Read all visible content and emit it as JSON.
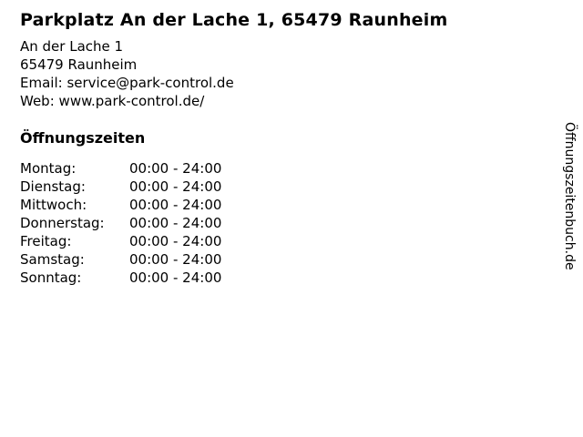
{
  "page": {
    "title": "Parkplatz An der Lache 1, 65479 Raunheim"
  },
  "address": {
    "street": "An der Lache 1",
    "city": "65479 Raunheim",
    "email_label": "Email:",
    "email_value": "service@park-control.de",
    "web_label": "Web:",
    "web_value": "www.park-control.de/"
  },
  "hours": {
    "heading": "Öffnungszeiten",
    "rows": [
      {
        "day": "Montag:",
        "time": "00:00 - 24:00"
      },
      {
        "day": "Dienstag:",
        "time": "00:00 - 24:00"
      },
      {
        "day": "Mittwoch:",
        "time": "00:00 - 24:00"
      },
      {
        "day": "Donnerstag:",
        "time": "00:00 - 24:00"
      },
      {
        "day": "Freitag:",
        "time": "00:00 - 24:00"
      },
      {
        "day": "Samstag:",
        "time": "00:00 - 24:00"
      },
      {
        "day": "Sonntag:",
        "time": "00:00 - 24:00"
      }
    ]
  },
  "watermark": "Öffnungszeitenbuch.de",
  "colors": {
    "text": "#000000",
    "background": "#ffffff"
  }
}
